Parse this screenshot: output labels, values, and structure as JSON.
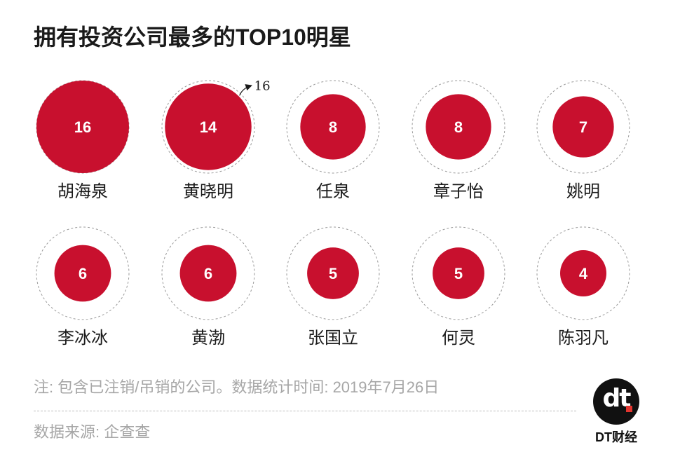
{
  "page": {
    "title": "拥有投资公司最多的TOP10明星",
    "note": "注: 包含已注销/吊销的公司。数据统计时间: 2019年7月26日",
    "source": "数据来源: 企查查",
    "logo_mark": "dt",
    "logo_text": "DT财经"
  },
  "chart_data": {
    "type": "bubble",
    "title": "拥有投资公司最多的TOP10明星",
    "categories": [
      "胡海泉",
      "黄晓明",
      "任泉",
      "章子怡",
      "姚明",
      "李冰冰",
      "黄渤",
      "张国立",
      "何灵",
      "陈羽凡"
    ],
    "values": [
      16,
      14,
      8,
      8,
      7,
      6,
      6,
      5,
      5,
      4
    ],
    "reference_value": 16,
    "annotations": [
      {
        "category": "黄晓明",
        "text": "16"
      }
    ],
    "colors": {
      "bubble": "#c8102e",
      "reference_ring": "#9a9a9a",
      "value_label": "#ffffff",
      "category_label": "#1a1a1a"
    }
  }
}
